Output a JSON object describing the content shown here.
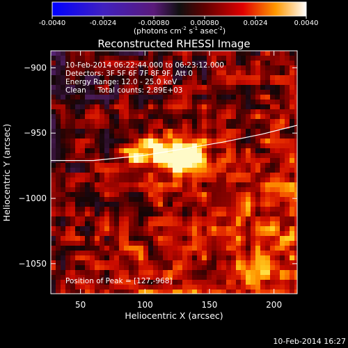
{
  "chart_data": {
    "type": "heatmap",
    "title": "Reconstructed RHESSI Image",
    "xlabel": "Heliocentric X (arcsec)",
    "ylabel": "Heliocentric Y (arcsec)",
    "xlim": [
      27,
      218
    ],
    "ylim": [
      -1073,
      -887
    ],
    "xticks": [
      50,
      100,
      150,
      200
    ],
    "yticks": [
      -900,
      -950,
      -1000,
      -1050
    ],
    "colorbar": {
      "ticks": [
        "-0.0040",
        "-0.0024",
        "-0.00080",
        "0.00080",
        "0.0024",
        "0.0040"
      ],
      "range": [
        -0.004,
        0.004
      ],
      "label_parts": [
        "(photons cm",
        "-2",
        " s",
        "-1",
        " asec",
        "-2",
        ")"
      ]
    },
    "annotations": [
      "10-Feb-2014 06:22:44.000 to 06:23:12.000",
      "Detectors: 3F 5F 6F 7F 8F 9F, Att 0",
      "Energy Range: 12.0 - 25.0 keV",
      "Clean     Total counts: 2.89E+03"
    ],
    "peak_text": "Position of Peak = [127,-968]",
    "peak": [
      127,
      -968
    ],
    "secondary_peak": [
      97,
      -965
    ],
    "limb_curve": [
      [
        27,
        -971
      ],
      [
        60,
        -971
      ],
      [
        100,
        -967
      ],
      [
        130,
        -962
      ],
      [
        160,
        -957
      ],
      [
        190,
        -951
      ],
      [
        218,
        -944
      ]
    ],
    "footer_timestamp": "10-Feb-2014 16:27"
  }
}
